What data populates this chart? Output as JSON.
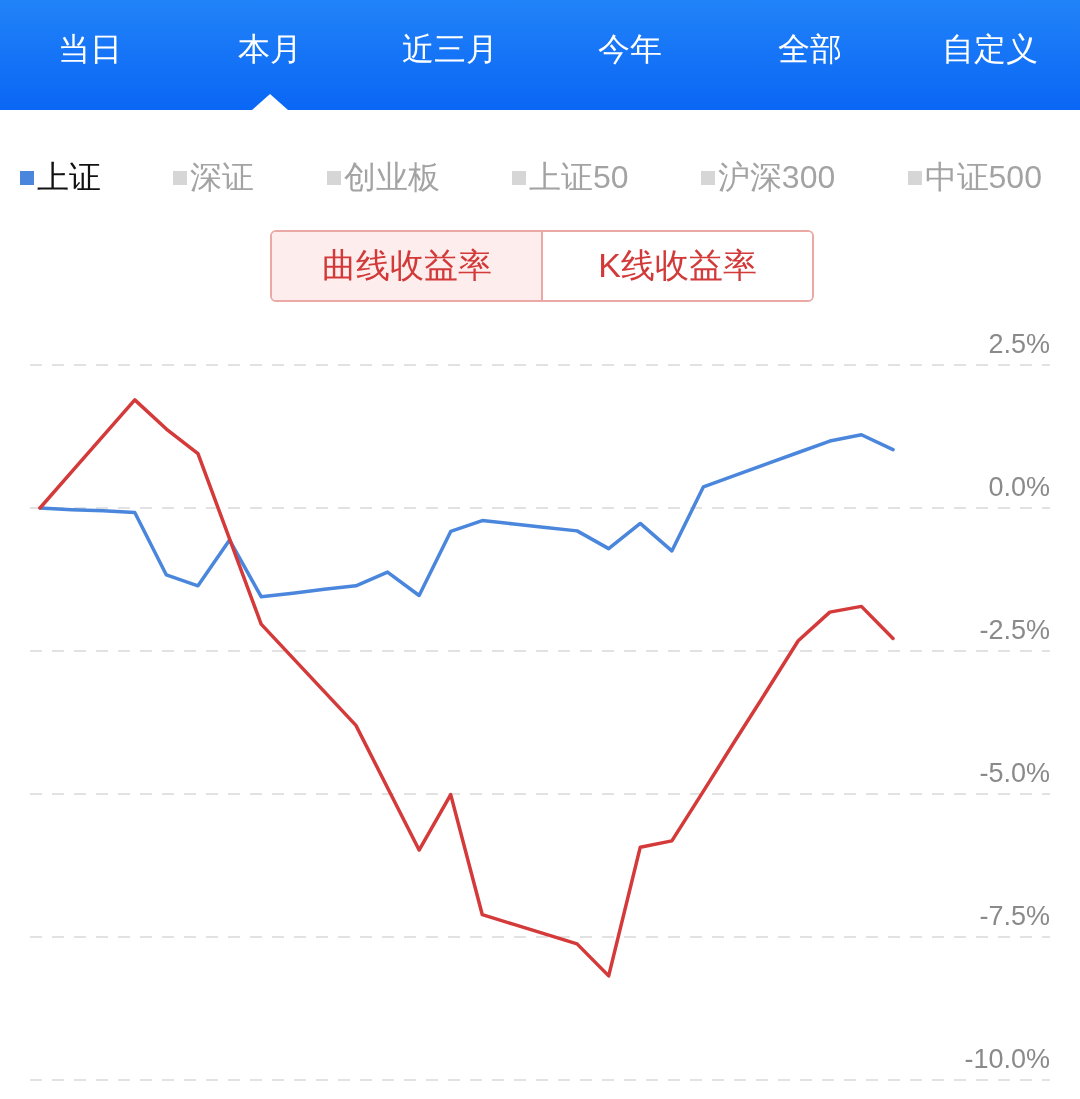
{
  "chart_data": {
    "type": "line",
    "categories": [
      null,
      null,
      null,
      null,
      null,
      null,
      null,
      null,
      null,
      null,
      null,
      null,
      null,
      null,
      null,
      null,
      null,
      null,
      null,
      null,
      null,
      null,
      null,
      null,
      null,
      null,
      null,
      null
    ],
    "series": [
      {
        "name": "上证",
        "color": "#4a87dc",
        "values": [
          0.0,
          -0.03,
          -0.05,
          -0.08,
          -1.17,
          -1.36,
          -0.56,
          -1.55,
          -1.49,
          -1.42,
          -1.36,
          -1.12,
          -1.53,
          -0.41,
          -0.22,
          -0.28,
          -0.34,
          -0.4,
          -0.71,
          -0.27,
          -0.75,
          0.37,
          0.57,
          0.77,
          0.97,
          1.17,
          1.28,
          1.02
        ]
      },
      {
        "color": "#d43a3a",
        "values": [
          0.0,
          0.63,
          1.26,
          1.89,
          1.38,
          0.95,
          -0.54,
          -2.03,
          -2.62,
          -3.21,
          -3.8,
          -4.89,
          -5.98,
          -5.01,
          -7.11,
          -7.28,
          -7.45,
          -7.62,
          -8.18,
          -5.93,
          -5.82,
          -4.95,
          -4.07,
          -3.2,
          -2.32,
          -1.82,
          -1.72,
          -2.28
        ]
      }
    ],
    "ylim": [
      -10,
      2.5
    ],
    "yticks": [
      {
        "value": 2.5,
        "label": "2.5%"
      },
      {
        "value": 0,
        "label": "0.0%"
      },
      {
        "value": -2.5,
        "label": "-2.5%"
      },
      {
        "value": -5,
        "label": "-5.0%"
      },
      {
        "value": -7.5,
        "label": "-7.5%"
      },
      {
        "value": -10,
        "label": "-10.0%"
      }
    ],
    "grid": "y",
    "legend": "top left",
    "tick_labels": "y",
    "marker": "none",
    "line_style": "solid",
    "annotations": [
      "当日",
      "本月",
      "近三月",
      "今年",
      "全部",
      "自定义",
      "深证",
      "创业板",
      "上证50",
      "沪深300",
      "中证500",
      "曲线收益率",
      "K线收益率"
    ]
  }
}
